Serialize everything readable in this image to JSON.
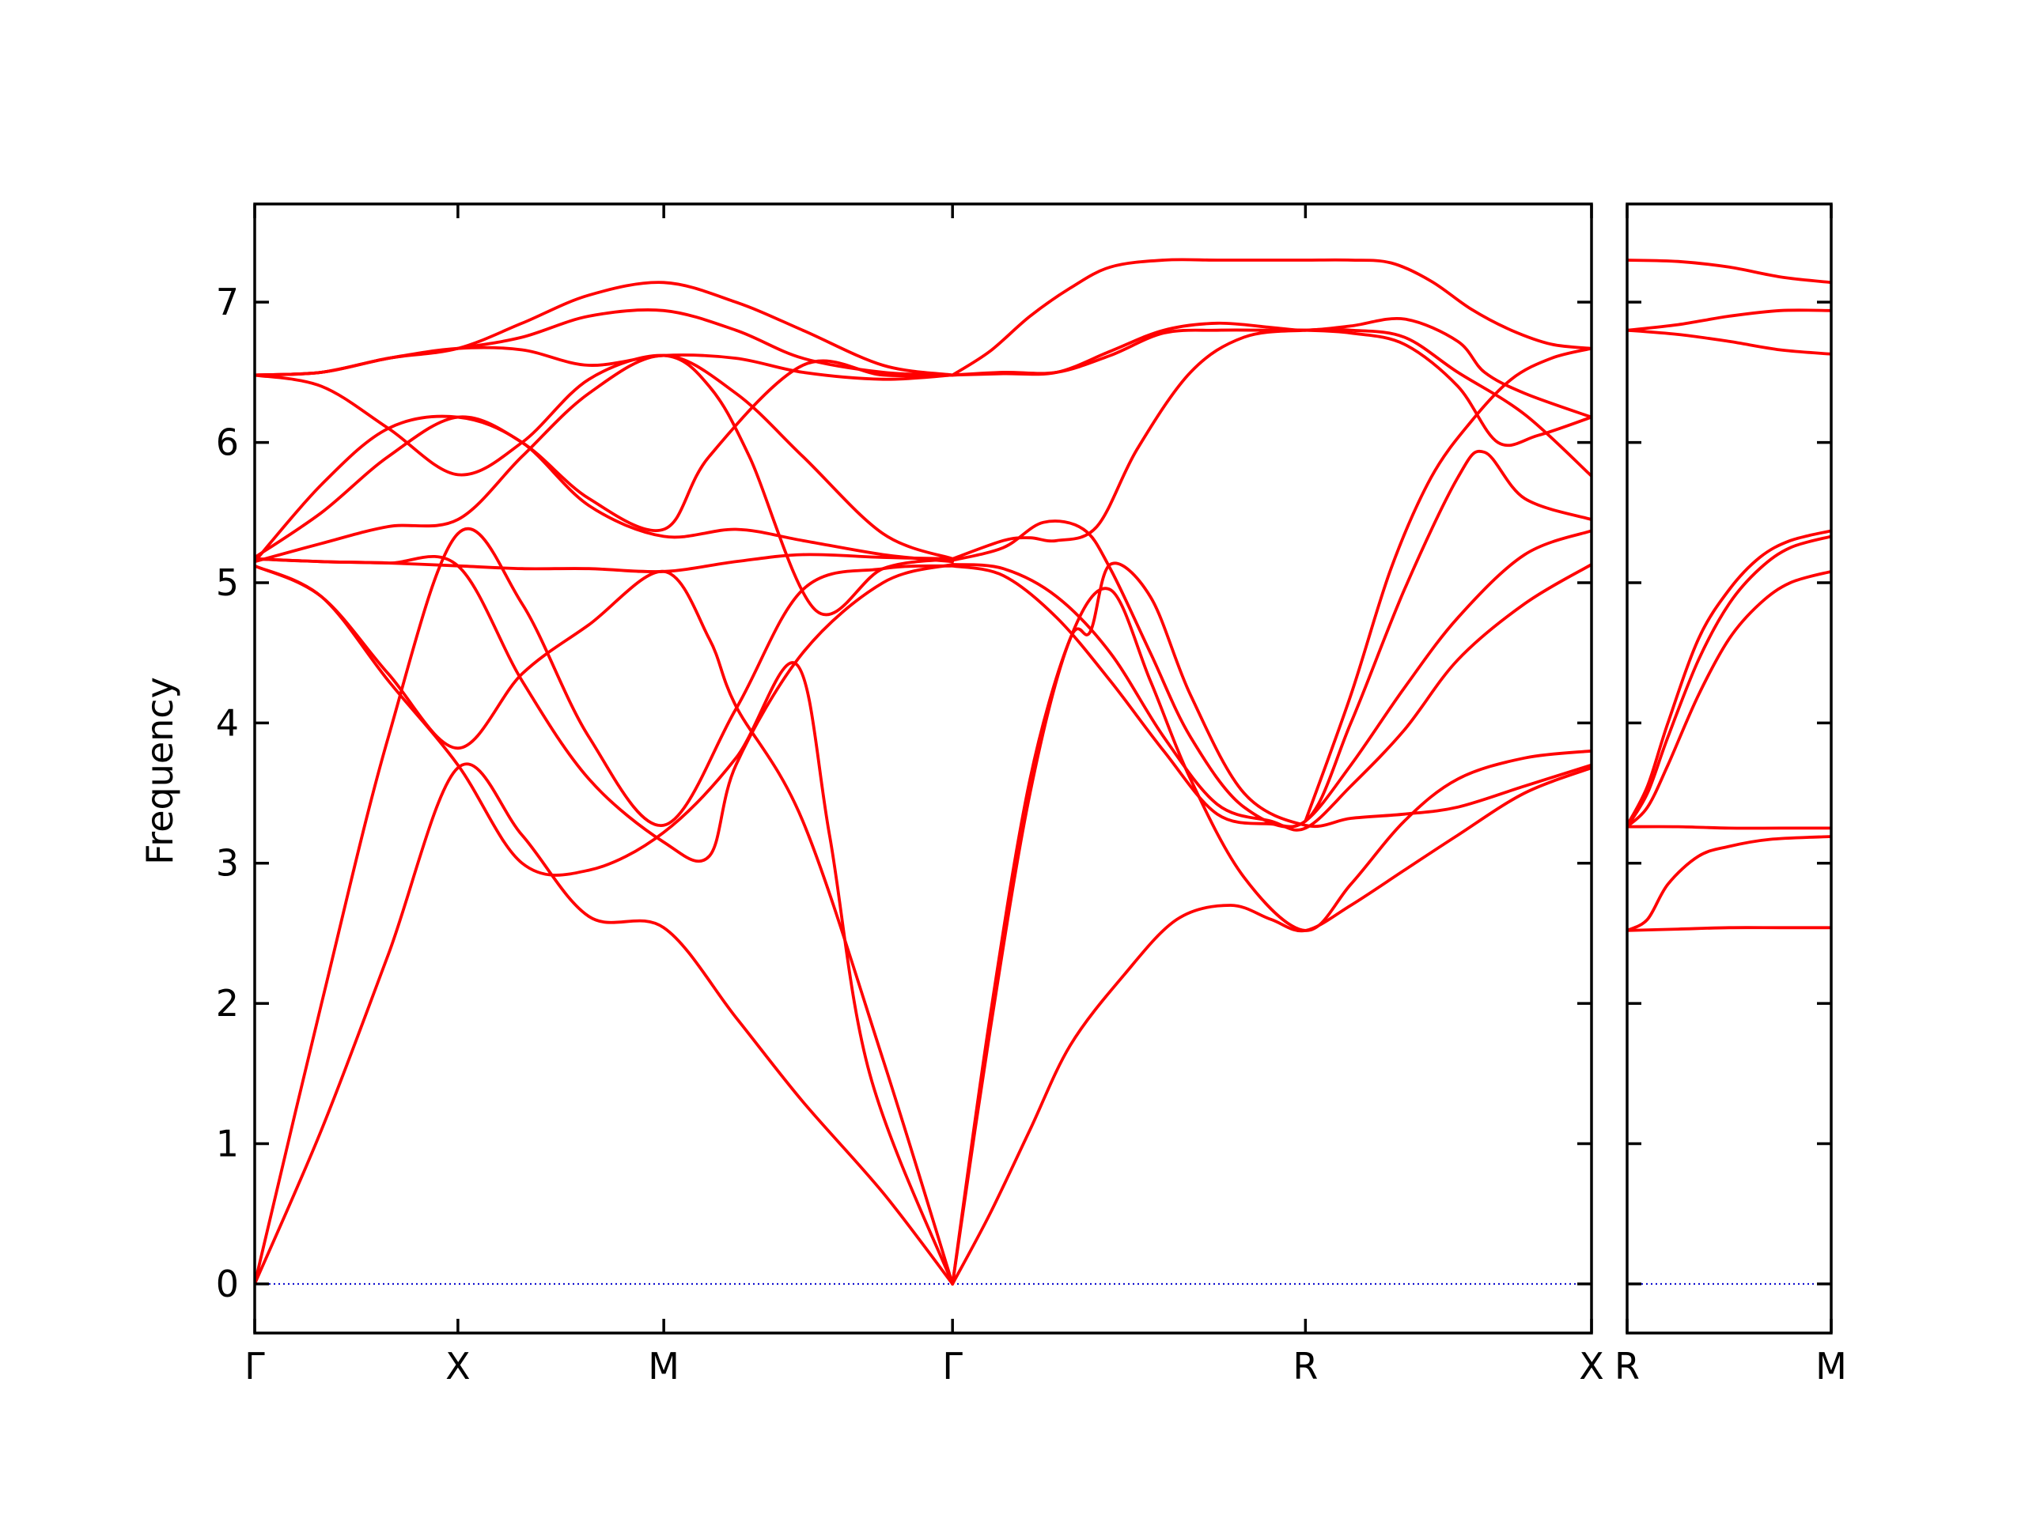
{
  "chart_data": {
    "type": "line",
    "ylabel": "Frequency",
    "ylim": [
      -0.35,
      7.7
    ],
    "yticks": [
      0,
      1,
      2,
      3,
      4,
      5,
      6,
      7
    ],
    "grid": false,
    "band_color": "#ff0000",
    "zero_line_color": "#0000cc",
    "panels": [
      {
        "xlim": [
          0,
          100
        ],
        "labels": [
          {
            "text": "Γ",
            "x": 0
          },
          {
            "text": "X",
            "x": 15.2
          },
          {
            "text": "M",
            "x": 30.6
          },
          {
            "text": "Γ",
            "x": 52.2
          },
          {
            "text": "R",
            "x": 78.6
          },
          {
            "text": "X",
            "x": 100
          }
        ],
        "series": [
          {
            "x": [
              0,
              5,
              10,
              15.2,
              20,
              25,
              30.6,
              36,
              41,
              47,
              52.2
            ],
            "y": [
              0,
              1.1,
              2.35,
              3.68,
              3.2,
              2.62,
              2.54,
              1.9,
              1.3,
              0.65,
              0
            ]
          },
          {
            "x": [
              0,
              5,
              10,
              15.2,
              20,
              25,
              30.6,
              36,
              41,
              47,
              52.2
            ],
            "y": [
              0,
              2.0,
              3.9,
              5.35,
              4.85,
              3.9,
              3.27,
              4.1,
              4.95,
              5.1,
              5.12
            ]
          },
          {
            "x": [
              0,
              5,
              10,
              15.2,
              20,
              25,
              30.6,
              36,
              40.5,
              43,
              46,
              52.2
            ],
            "y": [
              5.12,
              4.9,
              4.3,
              3.7,
              3.0,
              2.95,
              3.22,
              3.75,
              4.42,
              3.2,
              1.5,
              0
            ]
          },
          {
            "x": [
              0,
              5,
              10,
              15.2,
              20,
              25,
              30.6,
              34,
              36,
              41,
              47,
              52.2
            ],
            "y": [
              5.12,
              4.9,
              4.35,
              3.82,
              4.35,
              4.7,
              5.08,
              4.6,
              4.12,
              3.3,
              1.6,
              0
            ]
          },
          {
            "x": [
              0,
              5,
              10,
              15.2,
              20,
              25,
              30.6,
              34,
              36,
              41,
              47,
              52.2
            ],
            "y": [
              5.17,
              5.15,
              5.14,
              5.12,
              4.3,
              3.6,
              3.15,
              3.05,
              3.7,
              4.5,
              5.0,
              5.13
            ]
          },
          {
            "x": [
              0,
              5,
              10,
              15.2,
              20,
              25,
              30.6,
              36,
              41,
              47,
              52.2
            ],
            "y": [
              5.15,
              5.28,
              5.4,
              5.45,
              5.9,
              6.35,
              6.62,
              6.35,
              5.9,
              5.35,
              5.17
            ]
          },
          {
            "x": [
              0,
              5,
              10,
              15.2,
              20,
              25,
              30.6,
              36,
              41,
              47,
              52.2
            ],
            "y": [
              6.48,
              6.5,
              6.6,
              6.67,
              6.66,
              6.55,
              6.62,
              6.6,
              6.5,
              6.45,
              6.48
            ]
          },
          {
            "x": [
              0,
              5,
              10,
              15.2,
              20,
              25,
              30.6,
              36,
              41,
              47,
              52.2
            ],
            "y": [
              6.48,
              6.5,
              6.6,
              6.67,
              6.75,
              6.9,
              6.94,
              6.8,
              6.6,
              6.5,
              6.48
            ]
          },
          {
            "x": [
              0,
              5,
              10,
              15.2,
              20,
              25,
              30.6,
              36,
              41,
              47,
              52.2
            ],
            "y": [
              6.48,
              6.5,
              6.6,
              6.67,
              6.85,
              7.05,
              7.14,
              7.0,
              6.8,
              6.55,
              6.48
            ]
          },
          {
            "x": [
              0,
              5,
              10,
              15.2,
              20,
              25,
              30.6,
              34,
              37,
              42,
              47,
              52.2
            ],
            "y": [
              6.48,
              6.4,
              6.1,
              5.77,
              6.0,
              6.45,
              6.62,
              6.4,
              5.9,
              4.8,
              5.1,
              5.17
            ]
          },
          {
            "x": [
              0,
              5,
              10,
              15.2,
              20,
              25,
              30.6,
              34,
              41,
              47,
              52.2
            ],
            "y": [
              5.18,
              5.5,
              5.9,
              6.18,
              6.0,
              5.6,
              5.38,
              5.9,
              6.55,
              6.48,
              6.48
            ]
          },
          {
            "x": [
              0,
              5,
              10,
              15.2,
              20,
              25,
              30.6,
              36,
              41,
              47,
              52.2
            ],
            "y": [
              5.17,
              5.15,
              5.14,
              5.12,
              5.1,
              5.1,
              5.08,
              5.15,
              5.2,
              5.18,
              5.17
            ]
          },
          {
            "x": [
              0,
              5,
              10,
              15.2,
              20,
              25,
              30.6,
              36,
              41,
              47,
              52.2
            ],
            "y": [
              5.15,
              5.7,
              6.1,
              6.18,
              6.0,
              5.55,
              5.33,
              5.38,
              5.3,
              5.2,
              5.15
            ]
          },
          {
            "x": [
              52.2,
              55,
              58,
              61,
              65,
              69,
              73,
              76,
              78.6,
              82,
              86,
              90,
              95,
              100
            ],
            "y": [
              0,
              0.5,
              1.1,
              1.7,
              2.2,
              2.6,
              2.7,
              2.6,
              2.52,
              2.7,
              2.95,
              3.2,
              3.5,
              3.68
            ]
          },
          {
            "x": [
              52.2,
              55,
              58,
              61,
              64,
              67,
              70,
              74,
              78.6,
              82,
              86,
              90,
              95,
              100
            ],
            "y": [
              0,
              1.8,
              3.5,
              4.6,
              4.95,
              4.3,
              3.6,
              2.9,
              2.52,
              2.85,
              3.3,
              3.6,
              3.75,
              3.8
            ]
          },
          {
            "x": [
              52.2,
              55,
              58,
              61,
              62.5,
              64,
              67,
              70,
              74,
              78.6,
              82,
              86,
              90,
              95,
              100
            ],
            "y": [
              0,
              1.9,
              3.6,
              4.6,
              4.65,
              5.13,
              4.9,
              4.2,
              3.5,
              3.27,
              3.32,
              3.35,
              3.4,
              3.55,
              3.7
            ]
          },
          {
            "x": [
              52.2,
              56,
              60,
              64,
              68,
              72,
              76,
              78.6,
              82,
              86,
              90,
              95,
              100
            ],
            "y": [
              5.12,
              5.05,
              4.75,
              4.3,
              3.8,
              3.35,
              3.28,
              3.3,
              3.7,
              4.25,
              4.75,
              5.2,
              5.37
            ]
          },
          {
            "x": [
              52.2,
              56,
              60,
              64,
              68,
              72,
              76,
              78.6,
              82,
              86,
              90,
              95,
              100
            ],
            "y": [
              5.13,
              5.1,
              4.9,
              4.5,
              3.9,
              3.42,
              3.3,
              3.25,
              3.55,
              3.95,
              4.45,
              4.85,
              5.13
            ]
          },
          {
            "x": [
              52.2,
              56,
              59,
              62,
              64,
              67,
              70,
              74,
              78.6,
              82,
              86,
              90,
              92,
              95,
              100
            ],
            "y": [
              5.16,
              5.25,
              5.43,
              5.38,
              5.1,
              4.5,
              3.9,
              3.4,
              3.3,
              4.0,
              4.95,
              5.75,
              5.93,
              5.6,
              5.45
            ]
          },
          {
            "x": [
              52.2,
              56,
              58,
              60,
              63,
              66,
              70,
              74,
              78.6,
              82,
              86,
              90,
              95,
              100
            ],
            "y": [
              5.17,
              5.3,
              5.32,
              5.3,
              5.4,
              5.95,
              6.5,
              6.75,
              6.8,
              6.8,
              6.75,
              6.5,
              6.2,
              5.76
            ]
          },
          {
            "x": [
              52.2,
              56,
              60,
              64,
              68,
              72,
              76,
              78.6,
              82,
              86,
              90,
              92,
              95,
              100
            ],
            "y": [
              6.48,
              6.49,
              6.5,
              6.65,
              6.8,
              6.85,
              6.82,
              6.8,
              6.83,
              6.88,
              6.72,
              6.5,
              6.35,
              6.18
            ]
          },
          {
            "x": [
              52.2,
              56,
              60,
              64,
              68,
              72,
              76,
              78.6,
              82,
              86,
              90,
              93,
              96,
              100
            ],
            "y": [
              6.48,
              6.5,
              6.5,
              6.62,
              6.78,
              6.8,
              6.8,
              6.8,
              6.78,
              6.7,
              6.4,
              6.0,
              6.05,
              6.18
            ]
          },
          {
            "x": [
              52.2,
              55,
              58,
              61,
              64,
              68,
              72,
              76,
              78.6,
              82,
              85,
              88,
              91,
              94,
              97,
              100
            ],
            "y": [
              6.48,
              6.65,
              6.9,
              7.1,
              7.25,
              7.3,
              7.3,
              7.3,
              7.3,
              7.3,
              7.28,
              7.15,
              6.95,
              6.8,
              6.7,
              6.67
            ]
          },
          {
            "x": [
              78.6,
              82,
              85,
              88,
              91,
              94,
              97,
              100
            ],
            "y": [
              3.3,
              4.2,
              5.1,
              5.75,
              6.15,
              6.45,
              6.6,
              6.67
            ]
          }
        ]
      },
      {
        "xlim": [
          0,
          100
        ],
        "labels": [
          {
            "text": "R",
            "x": 0
          },
          {
            "text": "M",
            "x": 100
          }
        ],
        "series": [
          {
            "x": [
              0,
              25,
              50,
              75,
              100
            ],
            "y": [
              2.52,
              2.53,
              2.54,
              2.54,
              2.54
            ]
          },
          {
            "x": [
              0,
              10,
              20,
              35,
              50,
              70,
              100
            ],
            "y": [
              2.52,
              2.6,
              2.85,
              3.05,
              3.12,
              3.17,
              3.19
            ]
          },
          {
            "x": [
              0,
              25,
              50,
              75,
              100
            ],
            "y": [
              3.26,
              3.26,
              3.25,
              3.25,
              3.25
            ]
          },
          {
            "x": [
              0,
              10,
              20,
              35,
              50,
              65,
              80,
              100
            ],
            "y": [
              3.26,
              3.4,
              3.7,
              4.2,
              4.6,
              4.85,
              5.0,
              5.08
            ]
          },
          {
            "x": [
              0,
              10,
              20,
              35,
              50,
              65,
              80,
              100
            ],
            "y": [
              3.26,
              3.5,
              3.9,
              4.45,
              4.85,
              5.1,
              5.25,
              5.33
            ]
          },
          {
            "x": [
              0,
              10,
              20,
              35,
              50,
              65,
              80,
              100
            ],
            "y": [
              3.27,
              3.55,
              4.0,
              4.6,
              4.95,
              5.18,
              5.3,
              5.37
            ]
          },
          {
            "x": [
              0,
              25,
              50,
              75,
              100
            ],
            "y": [
              6.8,
              6.77,
              6.72,
              6.66,
              6.63
            ]
          },
          {
            "x": [
              0,
              25,
              50,
              75,
              100
            ],
            "y": [
              6.8,
              6.84,
              6.9,
              6.94,
              6.94
            ]
          },
          {
            "x": [
              0,
              25,
              50,
              75,
              100
            ],
            "y": [
              7.3,
              7.29,
              7.25,
              7.18,
              7.14
            ]
          }
        ]
      }
    ]
  }
}
